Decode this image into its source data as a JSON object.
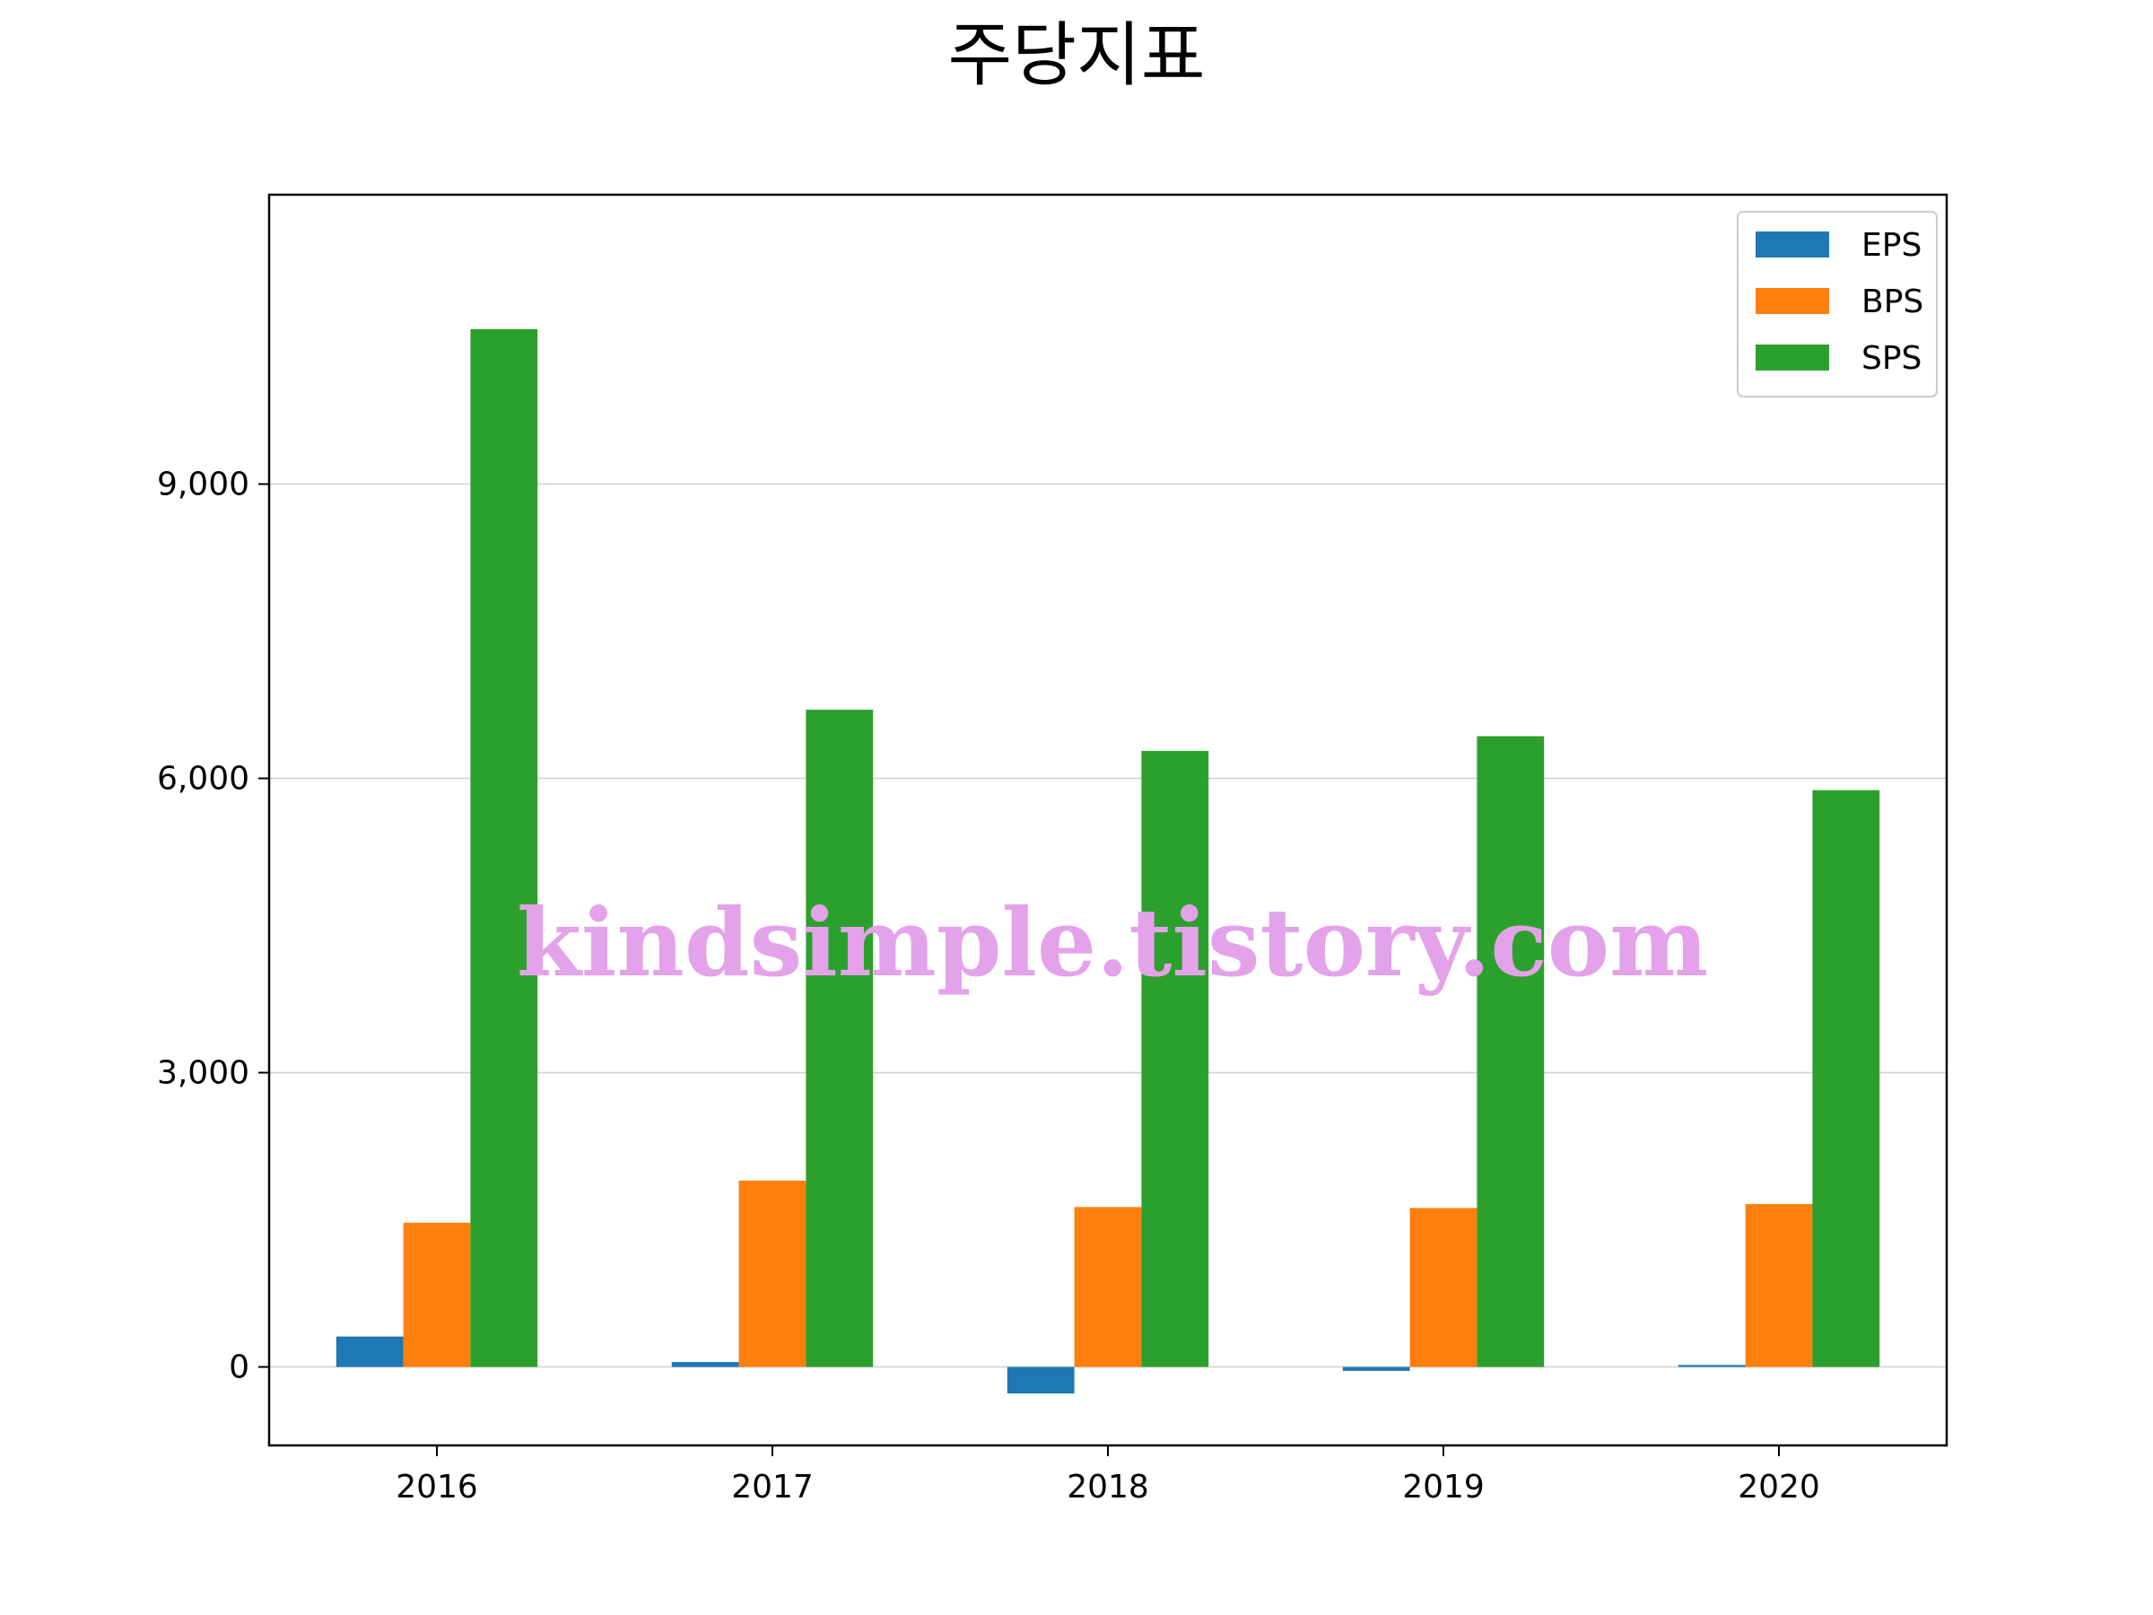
{
  "chart_data": {
    "type": "bar",
    "title": "주당지표",
    "xlabel": "",
    "ylabel": "",
    "categories": [
      "2016",
      "2017",
      "2018",
      "2019",
      "2020"
    ],
    "series": [
      {
        "name": "EPS",
        "color": "#1f77b4",
        "values": [
          310,
          50,
          -270,
          -40,
          20
        ]
      },
      {
        "name": "BPS",
        "color": "#ff7f0e",
        "values": [
          1470,
          1900,
          1630,
          1620,
          1660
        ]
      },
      {
        "name": "SPS",
        "color": "#2ca02c",
        "values": [
          10580,
          6700,
          6280,
          6430,
          5880
        ]
      }
    ],
    "ylim": [
      -800,
      11950
    ],
    "yticks": [
      0,
      3000,
      6000,
      9000
    ],
    "ytick_labels": [
      "0",
      "3,000",
      "6,000",
      "9,000"
    ],
    "grid": "horizontal",
    "legend_position": "top-right"
  },
  "watermark": "kindsimple.tistory.com"
}
